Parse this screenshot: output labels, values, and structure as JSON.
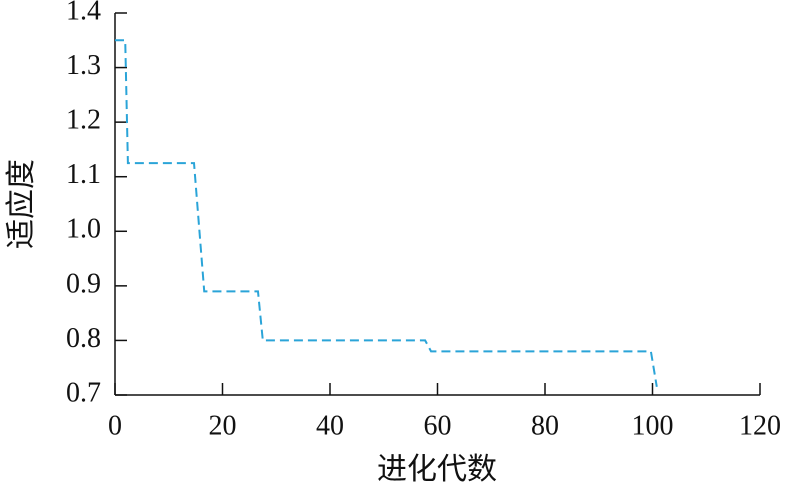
{
  "chart_data": {
    "type": "line",
    "x_label": "进化代数",
    "y_label": "适应度",
    "x": [
      0,
      1.9,
      2.4,
      14.7,
      16.6,
      26.6,
      27.5,
      57.7,
      58.8,
      99.7,
      100.8
    ],
    "series": [
      {
        "color": "#2aa4d8",
        "values": [
          1.35,
          1.35,
          1.125,
          1.125,
          0.89,
          0.89,
          0.8,
          0.8,
          0.78,
          0.78,
          0.715
        ]
      }
    ],
    "dashed": true,
    "xlim": [
      0,
      120
    ],
    "xticks": [
      0,
      20,
      40,
      60,
      80,
      100,
      120
    ],
    "ylim": [
      0.7,
      1.4
    ],
    "yticks": [
      0.7,
      0.8,
      0.9,
      {
        "value": 1,
        "label": "1.0"
      },
      1.1,
      1.2,
      1.3,
      1.4
    ]
  }
}
